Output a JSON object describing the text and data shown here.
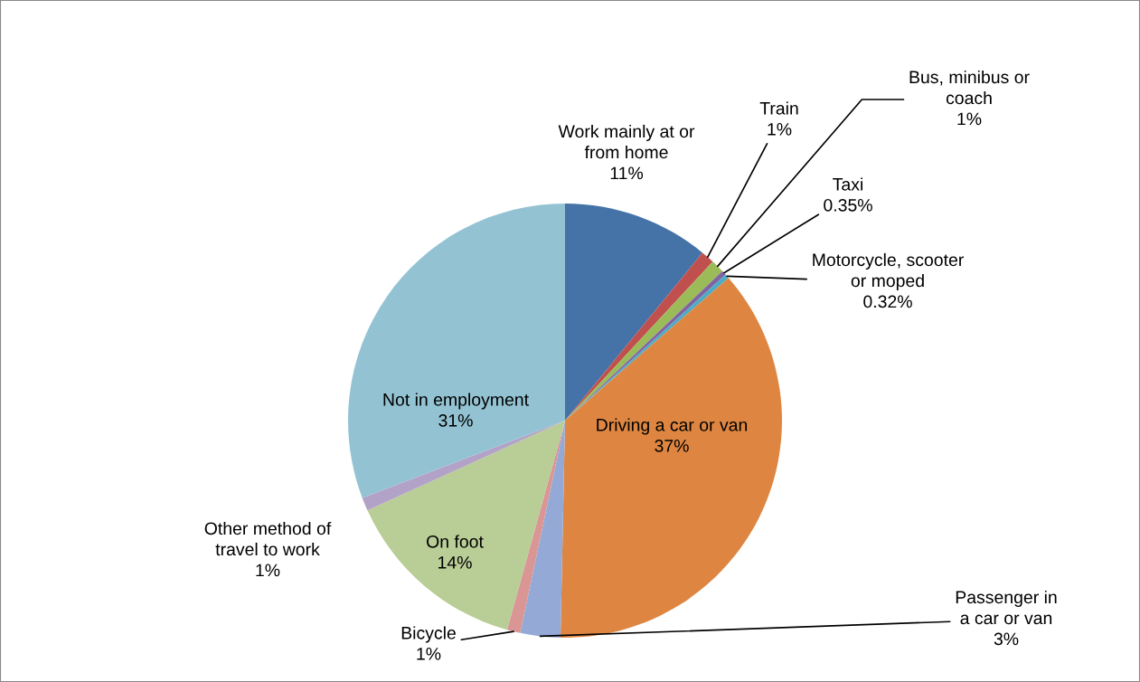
{
  "chart_data": {
    "type": "pie",
    "categories": [
      "Work mainly at or\nfrom home",
      "Train",
      "Bus, minibus or\ncoach",
      "Taxi",
      "Motorcycle, scooter\nor moped",
      "Driving a car or van",
      "Passenger in\na car or van",
      "Bicycle",
      "On foot",
      "Other method of\ntravel to work",
      "Not in employment"
    ],
    "values": [
      11,
      1,
      1,
      0.35,
      0.32,
      37,
      3,
      1,
      14,
      1,
      31
    ],
    "value_labels": [
      "11%",
      "1%",
      "1%",
      "0.35%",
      "0.32%",
      "37%",
      "3%",
      "1%",
      "14%",
      "1%",
      "31%"
    ],
    "colors": [
      "#4573a7",
      "#c0504d",
      "#9bbb59",
      "#8064a2",
      "#4bacc6",
      "#de8641",
      "#95a9d6",
      "#d99694",
      "#b9cd96",
      "#b3a2c7",
      "#93c3d3"
    ]
  }
}
